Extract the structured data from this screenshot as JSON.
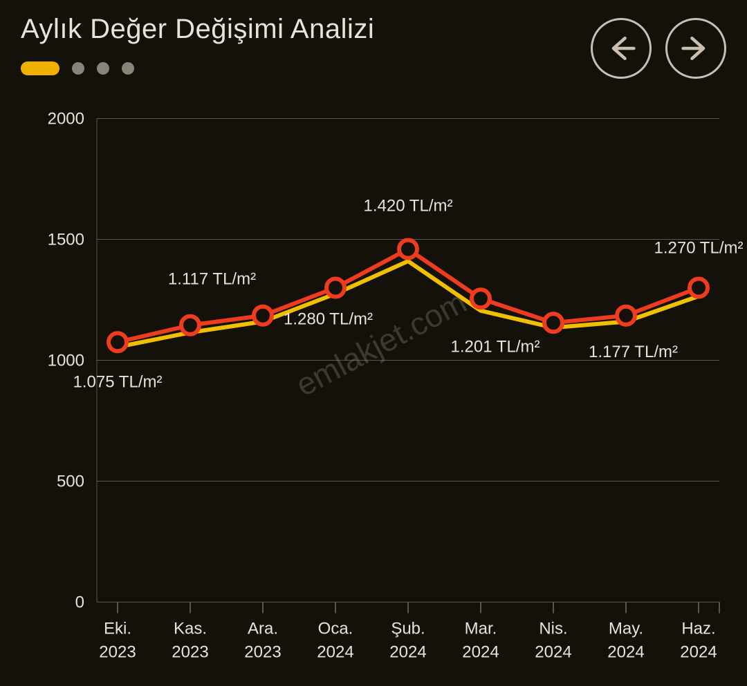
{
  "header": {
    "title": "Aylık Değer Değişimi Analizi"
  },
  "pagination": {
    "active_index": 0,
    "count": 4,
    "pill_color": "#f0b000",
    "dot_color": "#8a8378"
  },
  "nav": {
    "prev_name": "prev-arrow-icon",
    "next_name": "next-arrow-icon",
    "stroke_color": "#c9c0b0"
  },
  "watermark": {
    "text": "emlakjet.com",
    "color": "#8a8378",
    "opacity": 0.35,
    "fontsize": 46,
    "rotation_deg": -28
  },
  "chart": {
    "type": "line",
    "background_color": "#14100a",
    "grid_color": "#5c564c",
    "text_color": "#e8e2d8",
    "label_fontsize": 24,
    "tick_fontsize": 24,
    "ylim": [
      0,
      2000
    ],
    "yticks": [
      0,
      500,
      1000,
      1500,
      2000
    ],
    "categories": [
      [
        "Eki.",
        "2023"
      ],
      [
        "Kas.",
        "2023"
      ],
      [
        "Ara.",
        "2023"
      ],
      [
        "Oca.",
        "2024"
      ],
      [
        "Şub.",
        "2024"
      ],
      [
        "Mar.",
        "2024"
      ],
      [
        "Nis.",
        "2024"
      ],
      [
        "May.",
        "2024"
      ],
      [
        "Haz.",
        "2024"
      ]
    ],
    "series": [
      {
        "name": "upper",
        "color": "#f03c1e",
        "stroke_width": 6,
        "marker": "circle",
        "marker_radius": 13,
        "marker_fill": "#14100a",
        "marker_stroke": "#f03c1e",
        "marker_stroke_width": 6,
        "values": [
          1075,
          1145,
          1185,
          1300,
          1460,
          1255,
          1155,
          1185,
          1300
        ]
      },
      {
        "name": "lower",
        "color": "#f0c000",
        "stroke_width": 6,
        "marker": "none",
        "values": [
          1055,
          1115,
          1160,
          1275,
          1410,
          1205,
          1135,
          1160,
          1265
        ]
      }
    ],
    "data_labels": [
      {
        "text": "1.075 TL/m²",
        "x_index": 0,
        "position": "below",
        "dy": 65
      },
      {
        "text": "1.117 TL/m²",
        "x_index": 1.3,
        "position": "above",
        "dy": -55
      },
      {
        "text": "1.280 TL/m²",
        "x_index": 2.9,
        "position": "below",
        "dy": 40,
        "ref_series": 1
      },
      {
        "text": "1.420 TL/m²",
        "x_index": 4,
        "position": "above",
        "dy": -55
      },
      {
        "text": "1.201 TL/m²",
        "x_index": 5.2,
        "position": "below",
        "dy": 55,
        "ref_series": 1
      },
      {
        "text": "1.177 TL/m²",
        "x_index": 7.1,
        "position": "below",
        "dy": 55,
        "ref_series": 1
      },
      {
        "text": "1.270 TL/m²",
        "x_index": 8,
        "position": "above",
        "dy": -50
      }
    ]
  }
}
